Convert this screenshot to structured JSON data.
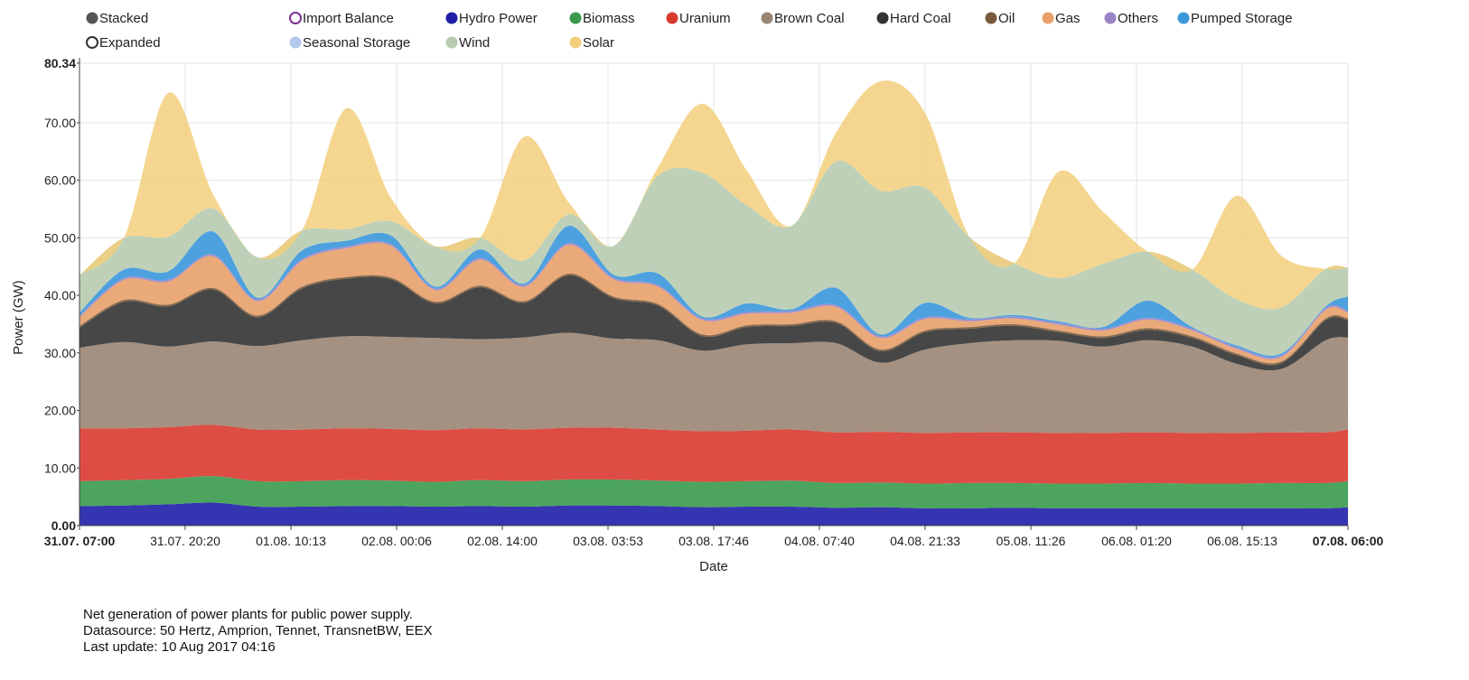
{
  "legend": {
    "mode_items": [
      {
        "label": "Stacked",
        "filled": true,
        "color": "#555555"
      },
      {
        "label": "Expanded",
        "filled": false,
        "color": "#333333"
      }
    ],
    "series_items": [
      {
        "label": "Import Balance",
        "color": "#7b3294",
        "hollow": true
      },
      {
        "label": "Hydro Power",
        "color": "#1f1fa8"
      },
      {
        "label": "Biomass",
        "color": "#3a9a4e"
      },
      {
        "label": "Uranium",
        "color": "#d93a2f"
      },
      {
        "label": "Brown Coal",
        "color": "#9a8574"
      },
      {
        "label": "Hard Coal",
        "color": "#333333"
      },
      {
        "label": "Oil",
        "color": "#7a5a3a"
      },
      {
        "label": "Gas",
        "color": "#e8a06a"
      },
      {
        "label": "Others",
        "color": "#9b84c6"
      },
      {
        "label": "Pumped Storage",
        "color": "#3a97dc"
      },
      {
        "label": "Seasonal Storage",
        "color": "#b4c8ee"
      },
      {
        "label": "Wind",
        "color": "#b7ccb0"
      },
      {
        "label": "Solar",
        "color": "#f3cf7c"
      }
    ]
  },
  "chart_data": {
    "type": "area",
    "stacked": true,
    "title": "",
    "xlabel": "Date",
    "ylabel": "Power (GW)",
    "ylim": [
      0,
      80.34
    ],
    "y_ticks": [
      "0.00",
      "10.00",
      "20.00",
      "30.00",
      "40.00",
      "50.00",
      "60.00",
      "70.00",
      "80.34"
    ],
    "x_tick_labels": [
      "31.07. 07:00",
      "31.07. 20:20",
      "01.08. 10:13",
      "02.08. 00:06",
      "02.08. 14:00",
      "03.08. 03:53",
      "03.08. 17:46",
      "04.08. 07:40",
      "04.08. 21:33",
      "05.08. 11:26",
      "06.08. 01:20",
      "06.08. 15:13",
      "07.08. 06:00"
    ],
    "x_hours": [
      0,
      6,
      12,
      18,
      24,
      30,
      36,
      42,
      48,
      54,
      60,
      66,
      72,
      78,
      84,
      90,
      96,
      102,
      108,
      114,
      120,
      126,
      132,
      138,
      144,
      150,
      156,
      162,
      168,
      171
    ],
    "series": [
      {
        "name": "Hydro Power",
        "values": [
          3.4,
          3.5,
          3.7,
          4.0,
          3.3,
          3.3,
          3.4,
          3.4,
          3.3,
          3.4,
          3.3,
          3.5,
          3.5,
          3.4,
          3.2,
          3.3,
          3.3,
          3.1,
          3.2,
          3.0,
          3.0,
          3.1,
          3.0,
          3.0,
          3.0,
          3.0,
          3.0,
          3.0,
          3.0,
          3.2
        ]
      },
      {
        "name": "Biomass",
        "values": [
          4.3,
          4.4,
          4.4,
          4.6,
          4.4,
          4.4,
          4.5,
          4.4,
          4.3,
          4.5,
          4.4,
          4.5,
          4.5,
          4.4,
          4.4,
          4.4,
          4.5,
          4.3,
          4.3,
          4.3,
          4.4,
          4.3,
          4.3,
          4.3,
          4.4,
          4.3,
          4.3,
          4.4,
          4.4,
          4.5
        ]
      },
      {
        "name": "Uranium",
        "values": [
          9.2,
          9.0,
          9.0,
          8.9,
          9.0,
          9.0,
          9.0,
          9.0,
          9.0,
          9.0,
          9.0,
          9.0,
          9.0,
          8.9,
          8.8,
          8.8,
          8.9,
          8.8,
          8.8,
          8.8,
          8.8,
          8.8,
          8.8,
          8.8,
          8.8,
          8.8,
          8.8,
          8.8,
          8.8,
          9.0
        ]
      },
      {
        "name": "Brown Coal",
        "values": [
          14.0,
          15.0,
          14.0,
          14.5,
          14.5,
          15.5,
          16.0,
          16.0,
          16.0,
          15.5,
          16.0,
          16.5,
          15.5,
          15.5,
          14.0,
          15.0,
          15.0,
          15.5,
          12.0,
          14.5,
          15.5,
          16.0,
          16.0,
          15.0,
          16.0,
          15.0,
          12.0,
          11.0,
          16.0,
          16.0
        ]
      },
      {
        "name": "Hard Coal",
        "values": [
          3.5,
          7.0,
          7.0,
          9.0,
          5.0,
          9.0,
          10.0,
          10.0,
          6.0,
          9.0,
          6.0,
          10.0,
          7.0,
          6.0,
          2.5,
          3.0,
          3.0,
          3.5,
          2.0,
          3.0,
          2.5,
          2.5,
          1.5,
          1.5,
          1.8,
          1.5,
          1.5,
          1.0,
          3.5,
          3.0
        ]
      },
      {
        "name": "Oil",
        "values": [
          0.3,
          0.3,
          0.3,
          0.3,
          0.3,
          0.3,
          0.3,
          0.3,
          0.3,
          0.3,
          0.3,
          0.3,
          0.3,
          0.3,
          0.3,
          0.3,
          0.3,
          0.3,
          0.3,
          0.3,
          0.3,
          0.3,
          0.3,
          0.3,
          0.3,
          0.3,
          0.3,
          0.3,
          0.3,
          0.3
        ]
      },
      {
        "name": "Gas",
        "values": [
          1.5,
          3.5,
          4.0,
          5.5,
          2.5,
          4.5,
          5.0,
          5.5,
          2.0,
          4.5,
          2.5,
          5.0,
          3.0,
          3.0,
          2.5,
          2.0,
          2.0,
          2.5,
          2.0,
          2.0,
          1.0,
          1.0,
          1.0,
          1.0,
          1.5,
          1.0,
          0.8,
          0.8,
          1.5,
          1.0
        ]
      },
      {
        "name": "Others",
        "values": [
          0.3,
          0.3,
          0.3,
          0.3,
          0.3,
          0.3,
          0.3,
          0.3,
          0.3,
          0.3,
          0.3,
          0.3,
          0.3,
          0.3,
          0.3,
          0.3,
          0.3,
          0.3,
          0.3,
          0.3,
          0.3,
          0.3,
          0.3,
          0.3,
          0.3,
          0.3,
          0.3,
          0.3,
          0.3,
          0.3
        ]
      },
      {
        "name": "Pumped Storage",
        "values": [
          0.5,
          1.5,
          1.5,
          4.0,
          0.3,
          1.5,
          1.0,
          1.5,
          0.3,
          1.5,
          0.3,
          3.0,
          0.5,
          2.0,
          0.3,
          1.5,
          0.3,
          3.0,
          0.3,
          2.5,
          0.3,
          0.3,
          0.3,
          0.3,
          3.0,
          0.3,
          0.3,
          0.3,
          0.3,
          2.5
        ]
      },
      {
        "name": "Wind",
        "values": [
          6.5,
          5.5,
          6.0,
          4.0,
          7.0,
          3.5,
          2.0,
          2.5,
          7.0,
          2.0,
          4.0,
          2.0,
          5.0,
          17.0,
          25.0,
          17.0,
          14.5,
          22.0,
          25.0,
          20.0,
          14.0,
          9.0,
          7.5,
          11.0,
          8.5,
          10.0,
          8.0,
          8.0,
          6.5,
          5.0
        ]
      },
      {
        "name": "Solar",
        "values": [
          0.0,
          0.0,
          25.0,
          2.5,
          0.0,
          0.0,
          21.0,
          4.0,
          0.0,
          0.0,
          21.5,
          2.0,
          0.0,
          1.5,
          12.0,
          6.0,
          0.0,
          5.0,
          19.0,
          13.0,
          0.0,
          0.0,
          18.5,
          9.0,
          0.0,
          0.0,
          18.0,
          9.0,
          0.0,
          0.0
        ]
      }
    ]
  },
  "footnote": {
    "line1": "Net generation of power plants for public power supply.",
    "line2": "Datasource: 50 Hertz, Amprion, Tennet, TransnetBW, EEX",
    "line3": "Last update: 10 Aug 2017 04:16"
  }
}
